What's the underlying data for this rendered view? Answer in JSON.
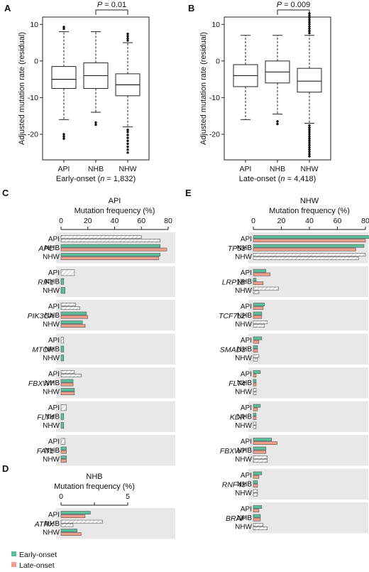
{
  "chart_data": [
    {
      "panel": "A",
      "type": "box",
      "categories": [
        "API",
        "NHB",
        "NHW"
      ],
      "ylabel": "Adjusted mutation rate (residual)",
      "xlabel_prefix": "Early-onset (",
      "xlabel_n": "n",
      "xlabel_suffix": " = 1,832)",
      "ylim": [
        -27,
        12
      ],
      "yticks": [
        -20,
        -10,
        0,
        10
      ],
      "comparison": {
        "from": 1,
        "to": 2,
        "p_italic": "P",
        "p_rest": " = 0.01"
      },
      "boxes": [
        {
          "whisker_low": -16,
          "q1": -7.5,
          "median": -5,
          "q3": -1.5,
          "whisker_high": 8,
          "outliers": [
            8.8,
            9.3,
            -20,
            -20.6,
            -21.2
          ]
        },
        {
          "whisker_low": -14,
          "q1": -7.5,
          "median": -4,
          "q3": -0.5,
          "whisker_high": 8,
          "outliers": [
            -16.8,
            -17.4
          ]
        },
        {
          "whisker_low": -18,
          "q1": -9.5,
          "median": -6.5,
          "q3": -3.5,
          "whisker_high": 5,
          "outliers": [
            5.6,
            6.2,
            6.8,
            7.4,
            -18.8,
            -19.4,
            -20.2,
            -21,
            -21.8,
            -22.6,
            -23.4,
            -24.2,
            -25
          ]
        }
      ]
    },
    {
      "panel": "B",
      "type": "box",
      "categories": [
        "API",
        "NHB",
        "NHW"
      ],
      "ylabel": "Adjusted mutation rate (residual)",
      "xlabel_prefix": "Late-onset (",
      "xlabel_n": "n",
      "xlabel_suffix": " = 4,418)",
      "ylim": [
        -27,
        12
      ],
      "yticks": [
        -20,
        -10,
        0,
        10
      ],
      "comparison": {
        "from": 1,
        "to": 2,
        "p_italic": "P",
        "p_rest": " = 0.009"
      },
      "boxes": [
        {
          "whisker_low": -16,
          "q1": -7,
          "median": -4,
          "q3": -1,
          "whisker_high": 7,
          "outliers": []
        },
        {
          "whisker_low": -14.5,
          "q1": -6,
          "median": -3,
          "q3": 0,
          "whisker_high": 7,
          "outliers": [
            -16.5,
            -17.2
          ]
        },
        {
          "whisker_low": -17,
          "q1": -8.5,
          "median": -5.5,
          "q3": -2,
          "whisker_high": 7,
          "outliers": [
            7.6,
            8.2,
            8.8,
            9.4,
            10,
            10.6,
            11.2,
            11.8,
            12.4,
            13,
            -17.6,
            -18.2,
            -18.8,
            -19.4,
            -20,
            -20.6,
            -21.2,
            -21.8,
            -22.4,
            -23,
            -23.6,
            -24.2,
            -24.8,
            -25.4,
            -26
          ]
        }
      ]
    },
    {
      "panel": "C",
      "type": "bar",
      "title": "API",
      "xlabel": "Mutation frequency (%)",
      "xlim": [
        0,
        80
      ],
      "xticks": [
        0,
        20,
        40,
        60,
        80
      ],
      "groups": [
        "API",
        "NHB",
        "NHW"
      ],
      "genes": [
        {
          "name": "APC",
          "values": [
            [
              60,
              74
            ],
            [
              74,
              79
            ],
            [
              74,
              73
            ]
          ]
        },
        {
          "name": "RIF1",
          "values": [
            [
              10
            ],
            [
              2
            ],
            [
              3
            ]
          ]
        },
        {
          "name": "PIK3CA",
          "values": [
            [
              11,
              14
            ],
            [
              19,
              20
            ],
            [
              16,
              18
            ]
          ]
        },
        {
          "name": "MTOR",
          "values": [
            [
              2
            ],
            [
              2
            ],
            [
              2
            ]
          ]
        },
        {
          "name": "FBXW7",
          "values": [
            [
              10,
              15
            ],
            [
              9,
              9
            ],
            [
              10,
              10
            ]
          ]
        },
        {
          "name": "FLT4",
          "values": [
            [
              4
            ],
            [
              2
            ],
            [
              2
            ]
          ]
        },
        {
          "name": "FAT1",
          "values": [
            [
              3
            ],
            [
              4,
              4
            ],
            [
              4,
              4
            ]
          ]
        }
      ]
    },
    {
      "panel": "D",
      "type": "bar",
      "title": "NHB",
      "xlabel": "Mutation frequency (%)",
      "xlim": [
        0,
        5
      ],
      "xticks": [
        0,
        5
      ],
      "minor_ticks": [
        2.5
      ],
      "groups": [
        "API",
        "NHB",
        "NHW"
      ],
      "genes": [
        {
          "name": "ATRX",
          "values": [
            [
              2.2,
              1.8
            ],
            [
              3.1,
              0.9
            ],
            [
              1.2,
              1.5
            ]
          ]
        }
      ]
    },
    {
      "panel": "E",
      "type": "bar",
      "title": "NHW",
      "xlabel": "Mutation frequency (%)",
      "xlim": [
        0,
        80
      ],
      "xticks": [
        0,
        20,
        40,
        60,
        80
      ],
      "groups": [
        "API",
        "NHB",
        "NHW"
      ],
      "genes": [
        {
          "name": "TP53",
          "values": [
            [
              83,
              80
            ],
            [
              79,
              73
            ],
            [
              80,
              75
            ]
          ]
        },
        {
          "name": "LRP1B",
          "values": [
            [
              9,
              12
            ],
            [
              2,
              7
            ],
            [
              18,
              4
            ]
          ]
        },
        {
          "name": "TCF7L2",
          "values": [
            [
              8,
              7
            ],
            [
              6,
              6
            ],
            [
              10,
              8
            ]
          ]
        },
        {
          "name": "SMAD3",
          "values": [
            [
              6,
              4
            ],
            [
              3,
              3
            ],
            [
              4,
              3
            ]
          ]
        },
        {
          "name": "FLT4",
          "values": [
            [
              5,
              2
            ],
            [
              2,
              2
            ],
            [
              2,
              2
            ]
          ]
        },
        {
          "name": "KDR",
          "values": [
            [
              5,
              3
            ],
            [
              2,
              2
            ],
            [
              2,
              2
            ]
          ]
        },
        {
          "name": "FBXW7",
          "values": [
            [
              13,
              17
            ],
            [
              9,
              9
            ],
            [
              10,
              10
            ]
          ]
        },
        {
          "name": "RNF43",
          "values": [
            [
              6,
              4
            ],
            [
              3,
              3
            ],
            [
              3,
              3
            ]
          ]
        },
        {
          "name": "BRAF",
          "values": [
            [
              6,
              4
            ],
            [
              5,
              5
            ],
            [
              7,
              10
            ]
          ]
        }
      ]
    }
  ],
  "legend": {
    "early": "Early-onset",
    "late": "Late-onset"
  },
  "colors": {
    "early": "#5bbf9b",
    "late": "#ee9e8c",
    "background": "#e8e8e8",
    "hatch": "#8f8f8f"
  }
}
